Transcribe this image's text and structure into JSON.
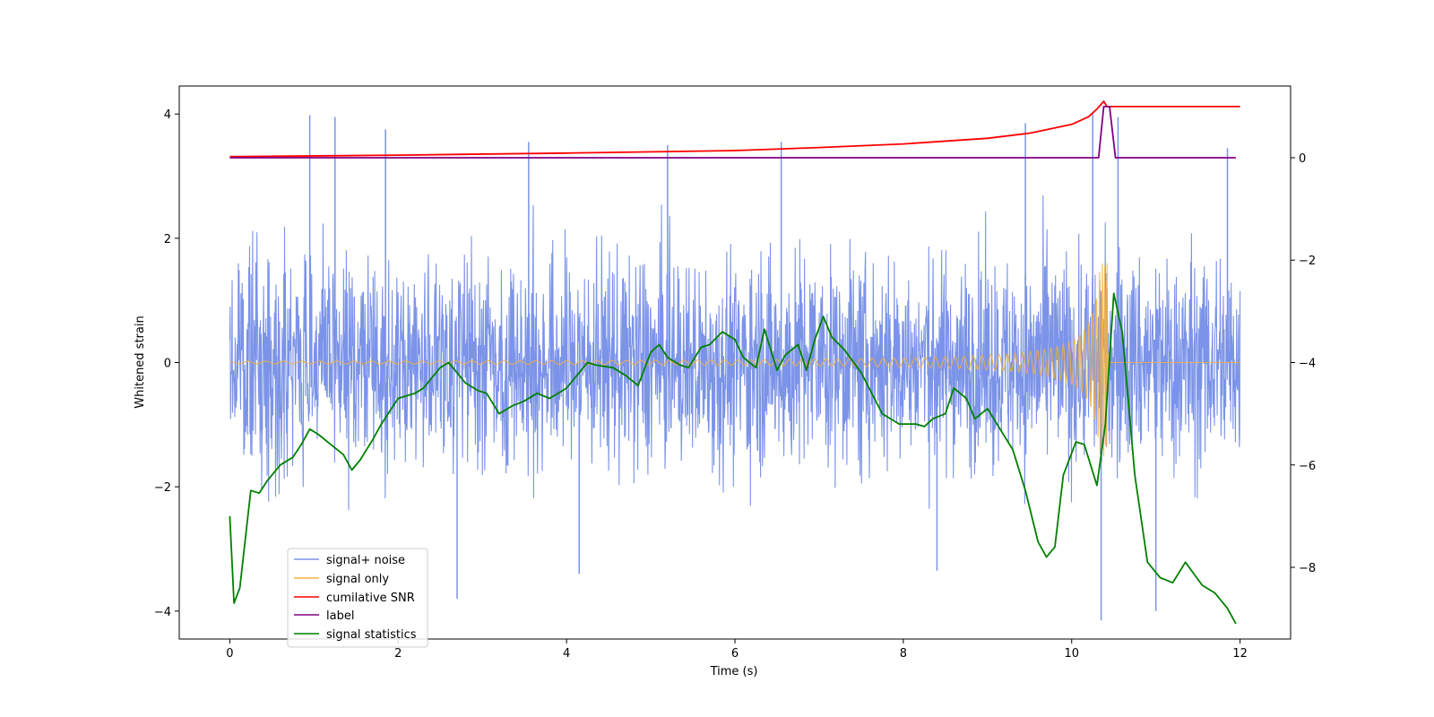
{
  "chart_data": {
    "type": "line",
    "title": "",
    "xlabel": "Time (s)",
    "ylabel": "Whitened strain",
    "ylabel_right": "",
    "xlim": [
      -0.6,
      12.6
    ],
    "ylim": [
      -4.45,
      4.45
    ],
    "ylim_right": [
      -9.4,
      1.4
    ],
    "xticks": [
      0,
      2,
      4,
      6,
      8,
      10,
      12
    ],
    "yticks": [
      -4,
      -2,
      0,
      2,
      4
    ],
    "yticks_right": [
      -8,
      -6,
      -4,
      -2,
      0
    ],
    "legend_position": "lower-left",
    "series": [
      {
        "name": "signal+ noise",
        "axis": "left",
        "color": "#7b93e8",
        "description": "broadband noise, amplitude roughly +/-2.5 with spikes to about +/-4, x from 0 to 12",
        "x_range": [
          0,
          12
        ],
        "amplitude": 2.5,
        "spikes": [
          [
            0.95,
            3.98
          ],
          [
            1.25,
            3.95
          ],
          [
            1.85,
            3.75
          ],
          [
            2.7,
            -3.8
          ],
          [
            3.55,
            3.55
          ],
          [
            4.15,
            -3.4
          ],
          [
            5.2,
            3.5
          ],
          [
            6.55,
            3.55
          ],
          [
            8.4,
            -3.35
          ],
          [
            9.45,
            3.85
          ],
          [
            10.25,
            4.0
          ],
          [
            10.35,
            -4.15
          ],
          [
            10.55,
            3.95
          ],
          [
            11.0,
            -4.0
          ],
          [
            11.85,
            3.45
          ]
        ]
      },
      {
        "name": "signal only",
        "axis": "left",
        "color": "#f5b041",
        "description": "chirp near zero growing to a peak of about +/-1.6 at t=10.4 then zero",
        "x_range": [
          0,
          12
        ],
        "merger_time": 10.42,
        "peak_amplitude": 1.6
      },
      {
        "name": "cumilative SNR",
        "axis": "right",
        "color": "#ff0000",
        "x": [
          0,
          2,
          4,
          6,
          7,
          8,
          9,
          9.5,
          10,
          10.2,
          10.3,
          10.38,
          10.42,
          12
        ],
        "values": [
          0.02,
          0.05,
          0.09,
          0.14,
          0.2,
          0.27,
          0.38,
          0.48,
          0.65,
          0.8,
          0.95,
          1.1,
          1.0,
          1.0
        ]
      },
      {
        "name": "label",
        "axis": "right",
        "color": "#800080",
        "x": [
          0,
          10.32,
          10.38,
          10.45,
          10.52,
          11.95
        ],
        "values": [
          0,
          0,
          1.0,
          1.0,
          0,
          0
        ]
      },
      {
        "name": "signal statistics",
        "axis": "right",
        "color": "#008000",
        "x": [
          0,
          0.05,
          0.12,
          0.25,
          0.35,
          0.45,
          0.6,
          0.75,
          0.85,
          0.95,
          1.05,
          1.2,
          1.35,
          1.45,
          1.55,
          1.7,
          1.8,
          2.0,
          2.2,
          2.3,
          2.4,
          2.5,
          2.6,
          2.7,
          2.8,
          2.95,
          3.05,
          3.2,
          3.35,
          3.5,
          3.65,
          3.8,
          4.0,
          4.1,
          4.25,
          4.35,
          4.55,
          4.7,
          4.85,
          5.0,
          5.1,
          5.2,
          5.35,
          5.45,
          5.6,
          5.7,
          5.85,
          6.0,
          6.1,
          6.25,
          6.35,
          6.5,
          6.6,
          6.75,
          6.85,
          6.95,
          7.05,
          7.15,
          7.3,
          7.5,
          7.75,
          7.95,
          8.15,
          8.25,
          8.35,
          8.5,
          8.6,
          8.75,
          8.85,
          9.0,
          9.15,
          9.3,
          9.45,
          9.6,
          9.7,
          9.8,
          9.9,
          10.05,
          10.15,
          10.3,
          10.4,
          10.5,
          10.6,
          10.75,
          10.9,
          11.05,
          11.2,
          11.35,
          11.55,
          11.7,
          11.85,
          11.95
        ],
        "values": [
          -7.0,
          -8.7,
          -8.4,
          -6.5,
          -6.55,
          -6.3,
          -6.0,
          -5.85,
          -5.6,
          -5.3,
          -5.4,
          -5.6,
          -5.8,
          -6.1,
          -5.9,
          -5.5,
          -5.2,
          -4.7,
          -4.6,
          -4.5,
          -4.3,
          -4.1,
          -4.0,
          -4.2,
          -4.4,
          -4.55,
          -4.6,
          -5.0,
          -4.85,
          -4.75,
          -4.6,
          -4.7,
          -4.5,
          -4.3,
          -4.0,
          -4.05,
          -4.1,
          -4.25,
          -4.45,
          -3.8,
          -3.65,
          -3.9,
          -4.05,
          -4.1,
          -3.7,
          -3.65,
          -3.4,
          -3.55,
          -3.9,
          -4.1,
          -3.35,
          -4.15,
          -3.85,
          -3.65,
          -4.15,
          -3.55,
          -3.1,
          -3.5,
          -3.75,
          -4.2,
          -5.0,
          -5.2,
          -5.2,
          -5.25,
          -5.1,
          -5.0,
          -4.5,
          -4.7,
          -5.1,
          -4.9,
          -5.3,
          -5.7,
          -6.5,
          -7.5,
          -7.8,
          -7.6,
          -6.2,
          -5.55,
          -5.6,
          -6.4,
          -5.2,
          -2.65,
          -3.4,
          -6.2,
          -7.9,
          -8.2,
          -8.3,
          -7.9,
          -8.35,
          -8.5,
          -8.8,
          -9.1
        ]
      }
    ]
  }
}
